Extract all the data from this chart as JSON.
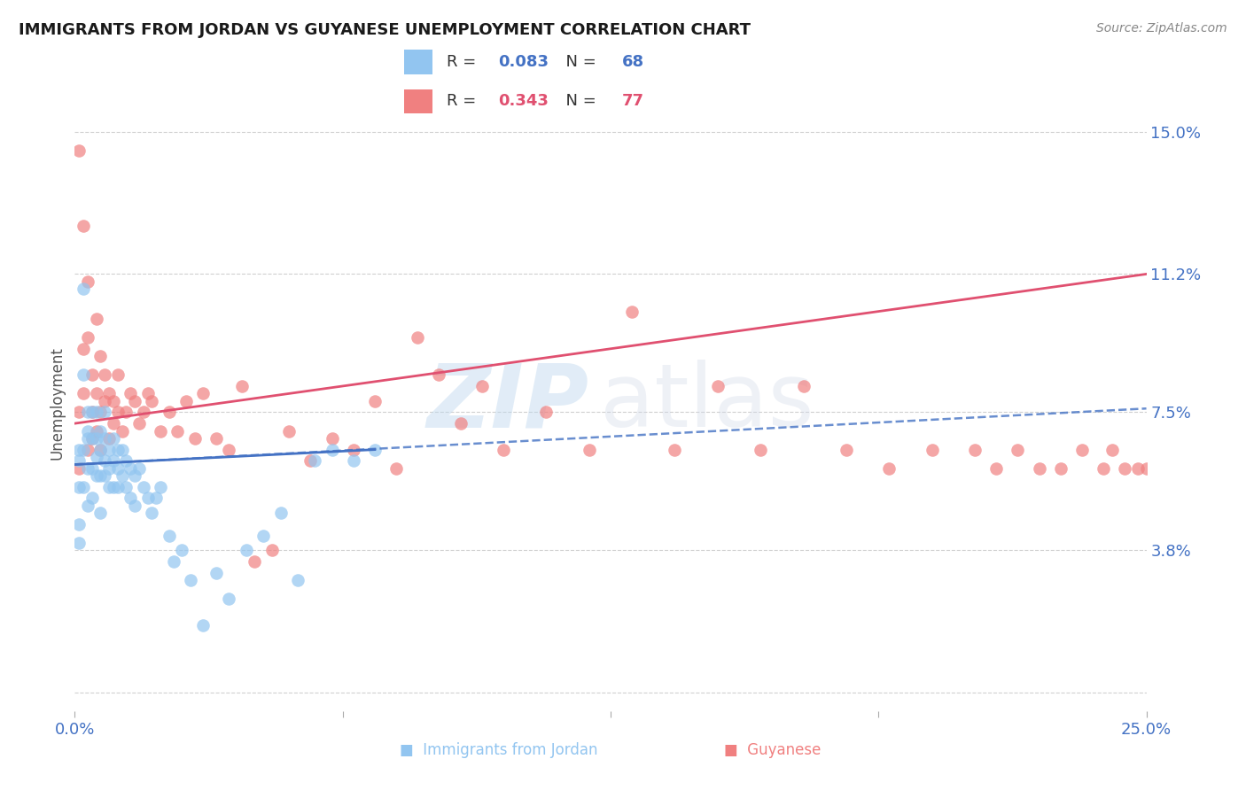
{
  "title": "IMMIGRANTS FROM JORDAN VS GUYANESE UNEMPLOYMENT CORRELATION CHART",
  "source": "Source: ZipAtlas.com",
  "ylabel": "Unemployment",
  "yticks": [
    0.0,
    0.038,
    0.075,
    0.112,
    0.15
  ],
  "ytick_labels": [
    "",
    "3.8%",
    "7.5%",
    "11.2%",
    "15.0%"
  ],
  "xmin": 0.0,
  "xmax": 0.25,
  "ymin": -0.005,
  "ymax": 0.16,
  "jordan_color": "#92C5F0",
  "guyanese_color": "#F08080",
  "jordan_line_color": "#4472C4",
  "guyanese_line_color": "#E05070",
  "watermark_zip": "ZIP",
  "watermark_atlas": "atlas",
  "jordan_R": "0.083",
  "jordan_N": "68",
  "guyanese_R": "0.343",
  "guyanese_N": "77",
  "jordan_scatter_x": [
    0.001,
    0.001,
    0.001,
    0.001,
    0.001,
    0.002,
    0.002,
    0.002,
    0.002,
    0.003,
    0.003,
    0.003,
    0.003,
    0.003,
    0.004,
    0.004,
    0.004,
    0.004,
    0.005,
    0.005,
    0.005,
    0.005,
    0.006,
    0.006,
    0.006,
    0.006,
    0.007,
    0.007,
    0.007,
    0.007,
    0.008,
    0.008,
    0.008,
    0.009,
    0.009,
    0.009,
    0.01,
    0.01,
    0.01,
    0.011,
    0.011,
    0.012,
    0.012,
    0.013,
    0.013,
    0.014,
    0.014,
    0.015,
    0.016,
    0.017,
    0.018,
    0.019,
    0.02,
    0.022,
    0.023,
    0.025,
    0.027,
    0.03,
    0.033,
    0.036,
    0.04,
    0.044,
    0.048,
    0.052,
    0.056,
    0.06,
    0.065,
    0.07
  ],
  "jordan_scatter_y": [
    0.062,
    0.065,
    0.055,
    0.045,
    0.04,
    0.108,
    0.085,
    0.065,
    0.055,
    0.075,
    0.07,
    0.06,
    0.05,
    0.068,
    0.075,
    0.068,
    0.06,
    0.052,
    0.075,
    0.068,
    0.063,
    0.058,
    0.07,
    0.065,
    0.058,
    0.048,
    0.075,
    0.068,
    0.062,
    0.058,
    0.065,
    0.06,
    0.055,
    0.068,
    0.062,
    0.055,
    0.065,
    0.06,
    0.055,
    0.065,
    0.058,
    0.062,
    0.055,
    0.06,
    0.052,
    0.058,
    0.05,
    0.06,
    0.055,
    0.052,
    0.048,
    0.052,
    0.055,
    0.042,
    0.035,
    0.038,
    0.03,
    0.018,
    0.032,
    0.025,
    0.038,
    0.042,
    0.048,
    0.03,
    0.062,
    0.065,
    0.062,
    0.065
  ],
  "guyanese_scatter_x": [
    0.001,
    0.001,
    0.001,
    0.002,
    0.002,
    0.002,
    0.003,
    0.003,
    0.003,
    0.004,
    0.004,
    0.004,
    0.005,
    0.005,
    0.005,
    0.006,
    0.006,
    0.006,
    0.007,
    0.007,
    0.008,
    0.008,
    0.009,
    0.009,
    0.01,
    0.01,
    0.011,
    0.012,
    0.013,
    0.014,
    0.015,
    0.016,
    0.017,
    0.018,
    0.02,
    0.022,
    0.024,
    0.026,
    0.028,
    0.03,
    0.033,
    0.036,
    0.039,
    0.042,
    0.046,
    0.05,
    0.055,
    0.06,
    0.065,
    0.07,
    0.075,
    0.08,
    0.085,
    0.09,
    0.095,
    0.1,
    0.11,
    0.12,
    0.13,
    0.14,
    0.15,
    0.16,
    0.17,
    0.18,
    0.19,
    0.2,
    0.21,
    0.215,
    0.22,
    0.225,
    0.23,
    0.235,
    0.24,
    0.242,
    0.245,
    0.248,
    0.25
  ],
  "guyanese_scatter_y": [
    0.06,
    0.145,
    0.075,
    0.092,
    0.125,
    0.08,
    0.065,
    0.095,
    0.11,
    0.085,
    0.068,
    0.075,
    0.08,
    0.1,
    0.07,
    0.09,
    0.075,
    0.065,
    0.085,
    0.078,
    0.08,
    0.068,
    0.078,
    0.072,
    0.075,
    0.085,
    0.07,
    0.075,
    0.08,
    0.078,
    0.072,
    0.075,
    0.08,
    0.078,
    0.07,
    0.075,
    0.07,
    0.078,
    0.068,
    0.08,
    0.068,
    0.065,
    0.082,
    0.035,
    0.038,
    0.07,
    0.062,
    0.068,
    0.065,
    0.078,
    0.06,
    0.095,
    0.085,
    0.072,
    0.082,
    0.065,
    0.075,
    0.065,
    0.102,
    0.065,
    0.082,
    0.065,
    0.082,
    0.065,
    0.06,
    0.065,
    0.065,
    0.06,
    0.065,
    0.06,
    0.06,
    0.065,
    0.06,
    0.065,
    0.06,
    0.06,
    0.06
  ]
}
